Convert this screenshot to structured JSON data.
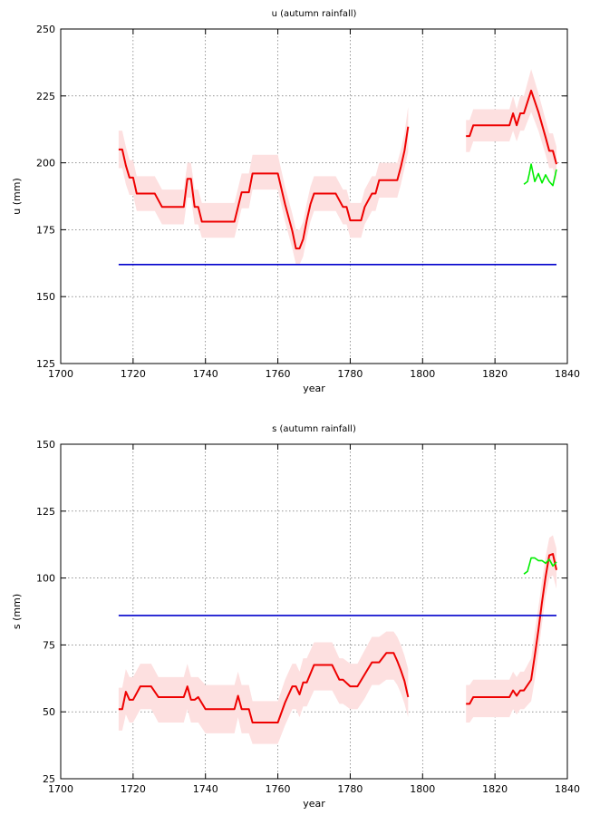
{
  "chart_data": [
    {
      "type": "line",
      "title": "u (autumn rainfall)",
      "xlabel": "year",
      "ylabel": "u (mm)",
      "xlim": [
        1700,
        1840
      ],
      "ylim": [
        125,
        250
      ],
      "xticks": [
        "1700",
        "1720",
        "1740",
        "1760",
        "1780",
        "1800",
        "1820",
        "1840"
      ],
      "yticks": [
        "125",
        "150",
        "175",
        "200",
        "225",
        "250"
      ],
      "grid": true,
      "series": [
        {
          "style": "band",
          "color": "#fde0e0",
          "segments": [
            {
              "x": [
                1716,
                1717,
                1718,
                1719,
                1720,
                1721,
                1722,
                1723,
                1726,
                1728,
                1730,
                1732,
                1734,
                1735,
                1736,
                1737,
                1738,
                1739,
                1740,
                1745,
                1748,
                1750,
                1752,
                1753,
                1760,
                1762,
                1764,
                1765,
                1766,
                1767,
                1768,
                1769,
                1770,
                1773,
                1776,
                1778,
                1779,
                1780,
                1782,
                1783,
                1784,
                1786,
                1787,
                1788,
                1790,
                1792,
                1793,
                1794,
                1795,
                1796
              ],
              "lower": [
                198,
                198,
                192,
                188,
                188,
                182,
                182,
                182,
                182,
                177,
                177,
                177,
                177,
                187,
                187,
                177,
                177,
                172,
                172,
                172,
                172,
                183,
                183,
                190,
                190,
                178,
                168,
                162,
                162,
                165,
                172,
                178,
                182,
                182,
                182,
                177,
                177,
                172,
                172,
                172,
                177,
                182,
                182,
                187,
                187,
                187,
                187,
                192,
                198,
                204
              ],
              "upper": [
                212,
                212,
                206,
                201,
                201,
                195,
                195,
                195,
                195,
                190,
                190,
                190,
                190,
                200,
                200,
                190,
                190,
                185,
                185,
                185,
                185,
                196,
                196,
                203,
                203,
                191,
                181,
                175,
                175,
                178,
                185,
                191,
                195,
                195,
                195,
                190,
                190,
                185,
                185,
                185,
                190,
                195,
                195,
                200,
                200,
                200,
                200,
                205,
                211,
                221
              ]
            },
            {
              "x": [
                1812,
                1813,
                1814,
                1820,
                1824,
                1825,
                1826,
                1827,
                1828,
                1830,
                1832,
                1834,
                1835,
                1836,
                1837
              ],
              "lower": [
                204,
                204,
                208,
                208,
                208,
                212,
                208,
                212,
                212,
                219,
                212,
                203,
                198,
                198,
                193
              ],
              "upper": [
                216,
                216,
                220,
                220,
                220,
                225,
                220,
                225,
                225,
                235,
                226,
                216,
                211,
                211,
                206
              ]
            }
          ]
        },
        {
          "style": "line",
          "color": "#ee0000",
          "segments": [
            {
              "x": [
                1716,
                1717,
                1718,
                1719,
                1720,
                1721,
                1722,
                1723,
                1726,
                1728,
                1730,
                1732,
                1734,
                1735,
                1736,
                1737,
                1738,
                1739,
                1740,
                1745,
                1748,
                1750,
                1752,
                1753,
                1760,
                1762,
                1764,
                1765,
                1766,
                1767,
                1768,
                1769,
                1770,
                1773,
                1776,
                1778,
                1779,
                1780,
                1782,
                1783,
                1784,
                1786,
                1787,
                1788,
                1790,
                1792,
                1793,
                1794,
                1795,
                1796
              ],
              "y": [
                205,
                205,
                199,
                194.5,
                194.5,
                188.5,
                188.5,
                188.5,
                188.5,
                183.5,
                183.5,
                183.5,
                183.5,
                194,
                194,
                183.5,
                183.5,
                178,
                178,
                178,
                178,
                189,
                189,
                196,
                196,
                184.5,
                174.5,
                168,
                168,
                171.5,
                178.5,
                184.5,
                188.5,
                188.5,
                188.5,
                183.5,
                183.5,
                178.5,
                178.5,
                178.5,
                183.5,
                188.5,
                188.5,
                193.5,
                193.5,
                193.5,
                193.5,
                198.5,
                204.5,
                213.5
              ]
            },
            {
              "x": [
                1812,
                1813,
                1814,
                1820,
                1824,
                1825,
                1826,
                1827,
                1828,
                1830,
                1832,
                1834,
                1835,
                1836,
                1837
              ],
              "y": [
                210,
                210,
                214,
                214,
                214,
                218.5,
                214,
                218.5,
                218.5,
                227,
                219,
                209.5,
                204.5,
                204.5,
                199.5
              ]
            }
          ]
        },
        {
          "style": "line",
          "color": "#00ee00",
          "segments": [
            {
              "x": [
                1828,
                1829,
                1829.5,
                1830,
                1831,
                1832,
                1833,
                1834,
                1835,
                1836,
                1837
              ],
              "y": [
                192,
                193,
                196,
                199.5,
                193,
                196,
                192.5,
                195.5,
                193,
                191.5,
                197.5
              ]
            }
          ]
        },
        {
          "style": "line",
          "color": "#0000cc",
          "segments": [
            {
              "x": [
                1716,
                1837
              ],
              "y": [
                162,
                162
              ]
            }
          ]
        }
      ]
    },
    {
      "type": "line",
      "title": "s (autumn rainfall)",
      "xlabel": "year",
      "ylabel": "s (mm)",
      "xlim": [
        1700,
        1840
      ],
      "ylim": [
        25,
        150
      ],
      "xticks": [
        "1700",
        "1720",
        "1740",
        "1760",
        "1780",
        "1800",
        "1820",
        "1840"
      ],
      "yticks": [
        "25",
        "50",
        "75",
        "100",
        "125",
        "150"
      ],
      "grid": true,
      "series": [
        {
          "style": "band",
          "color": "#fde0e0",
          "segments": [
            {
              "x": [
                1716,
                1717,
                1718,
                1719,
                1720,
                1722,
                1725,
                1727,
                1730,
                1733,
                1734,
                1735,
                1736,
                1737,
                1738,
                1740,
                1745,
                1748,
                1749,
                1750,
                1752,
                1753,
                1760,
                1762,
                1764,
                1765,
                1766,
                1767,
                1768,
                1770,
                1773,
                1775,
                1777,
                1778,
                1780,
                1782,
                1784,
                1786,
                1788,
                1790,
                1792,
                1793,
                1794,
                1795,
                1796
              ],
              "lower": [
                43,
                43,
                49,
                46,
                46,
                51,
                51,
                46,
                46,
                46,
                46,
                51,
                46,
                46,
                46,
                42,
                42,
                42,
                48,
                42,
                42,
                38,
                38,
                45,
                51,
                51,
                48,
                52,
                52,
                58,
                58,
                58,
                53,
                53,
                51,
                51,
                55,
                60,
                60,
                62,
                62,
                60,
                57,
                53,
                48
              ],
              "upper": [
                59,
                59,
                66,
                63,
                63,
                68,
                68,
                63,
                63,
                63,
                63,
                68,
                63,
                63,
                63,
                60,
                60,
                60,
                65,
                60,
                60,
                54,
                54,
                62,
                68,
                68,
                65,
                70,
                70,
                76,
                76,
                76,
                70,
                70,
                68,
                68,
                73,
                78,
                78,
                80,
                80,
                78,
                75,
                71,
                66
              ]
            },
            {
              "x": [
                1812,
                1813,
                1814,
                1824,
                1825,
                1826,
                1827,
                1828,
                1830,
                1831,
                1832,
                1833,
                1834,
                1835,
                1836,
                1837
              ],
              "lower": [
                46,
                46,
                48,
                48,
                51,
                49,
                51,
                51,
                54,
                62,
                72,
                83,
                93,
                100,
                101,
                96
              ],
              "upper": [
                60,
                60,
                62,
                62,
                65,
                63,
                65,
                65,
                70,
                80,
                89,
                99,
                108,
                115,
                116,
                111
              ]
            }
          ]
        },
        {
          "style": "line",
          "color": "#ee0000",
          "segments": [
            {
              "x": [
                1716,
                1717,
                1718,
                1719,
                1720,
                1722,
                1725,
                1727,
                1730,
                1733,
                1734,
                1735,
                1736,
                1737,
                1738,
                1740,
                1745,
                1748,
                1749,
                1750,
                1752,
                1753,
                1760,
                1762,
                1764,
                1765,
                1766,
                1767,
                1768,
                1770,
                1773,
                1775,
                1777,
                1778,
                1780,
                1782,
                1784,
                1786,
                1788,
                1790,
                1792,
                1793,
                1794,
                1795,
                1796
              ],
              "y": [
                51,
                51,
                57.5,
                54.5,
                54.5,
                59.5,
                59.5,
                55.5,
                55.5,
                55.5,
                55.5,
                59.5,
                54.5,
                54.5,
                55.5,
                51,
                51,
                51,
                56,
                51,
                51,
                46,
                46,
                53.5,
                59.5,
                59.5,
                56.5,
                61,
                61,
                67.5,
                67.5,
                67.5,
                62,
                62,
                59.5,
                59.5,
                64,
                68.5,
                68.5,
                72,
                72,
                69,
                65.5,
                61.5,
                55.5
              ]
            },
            {
              "x": [
                1812,
                1813,
                1814,
                1824,
                1825,
                1826,
                1827,
                1828,
                1830,
                1831,
                1832,
                1833,
                1834,
                1835,
                1836,
                1837
              ],
              "y": [
                53,
                53,
                55.5,
                55.5,
                58,
                56,
                58,
                58,
                62,
                71,
                80.5,
                91,
                100.5,
                108.5,
                109,
                103
              ]
            }
          ]
        },
        {
          "style": "line",
          "color": "#00ee00",
          "segments": [
            {
              "x": [
                1828,
                1829,
                1830,
                1831,
                1832,
                1833,
                1834,
                1835,
                1836,
                1837
              ],
              "y": [
                101.5,
                102.5,
                107.5,
                107.5,
                106.5,
                106.5,
                105.5,
                107,
                104.5,
                106
              ]
            }
          ]
        },
        {
          "style": "line",
          "color": "#0000cc",
          "segments": [
            {
              "x": [
                1716,
                1837
              ],
              "y": [
                86,
                86
              ]
            }
          ]
        }
      ]
    }
  ]
}
